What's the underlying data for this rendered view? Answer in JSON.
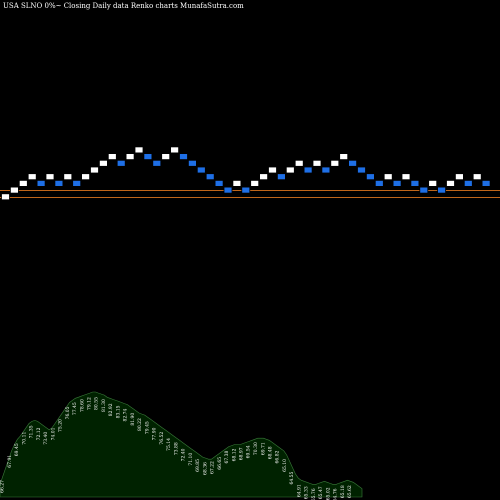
{
  "title": "USA SLNO  0%~  Closing Daily data  Renko  charts MunafaSutra.com",
  "colors": {
    "background": "#000000",
    "up_brick": "#ffffff",
    "down_brick": "#1e6fe6",
    "brick_border": "#000000",
    "price_line": "#c0661a",
    "volume_fill": "#002200",
    "volume_outline": "#3a7a3a",
    "label": "#ffffff"
  },
  "chart_data": {
    "type": "renko",
    "bricks": [
      {
        "col": 0,
        "level": 0,
        "dir": "up"
      },
      {
        "col": 1,
        "level": 1,
        "dir": "up"
      },
      {
        "col": 2,
        "level": 2,
        "dir": "up"
      },
      {
        "col": 3,
        "level": 3,
        "dir": "up"
      },
      {
        "col": 4,
        "level": 2,
        "dir": "down"
      },
      {
        "col": 5,
        "level": 3,
        "dir": "up"
      },
      {
        "col": 6,
        "level": 2,
        "dir": "down"
      },
      {
        "col": 7,
        "level": 3,
        "dir": "up"
      },
      {
        "col": 8,
        "level": 2,
        "dir": "down"
      },
      {
        "col": 9,
        "level": 3,
        "dir": "up"
      },
      {
        "col": 10,
        "level": 4,
        "dir": "up"
      },
      {
        "col": 11,
        "level": 5,
        "dir": "up"
      },
      {
        "col": 12,
        "level": 6,
        "dir": "up"
      },
      {
        "col": 13,
        "level": 5,
        "dir": "down"
      },
      {
        "col": 14,
        "level": 6,
        "dir": "up"
      },
      {
        "col": 15,
        "level": 7,
        "dir": "up"
      },
      {
        "col": 16,
        "level": 6,
        "dir": "down"
      },
      {
        "col": 17,
        "level": 5,
        "dir": "down"
      },
      {
        "col": 18,
        "level": 6,
        "dir": "up"
      },
      {
        "col": 19,
        "level": 7,
        "dir": "up"
      },
      {
        "col": 20,
        "level": 6,
        "dir": "down"
      },
      {
        "col": 21,
        "level": 5,
        "dir": "down"
      },
      {
        "col": 22,
        "level": 4,
        "dir": "down"
      },
      {
        "col": 23,
        "level": 3,
        "dir": "down"
      },
      {
        "col": 24,
        "level": 2,
        "dir": "down"
      },
      {
        "col": 25,
        "level": 1,
        "dir": "down"
      },
      {
        "col": 26,
        "level": 2,
        "dir": "up"
      },
      {
        "col": 27,
        "level": 1,
        "dir": "down"
      },
      {
        "col": 28,
        "level": 2,
        "dir": "up"
      },
      {
        "col": 29,
        "level": 3,
        "dir": "up"
      },
      {
        "col": 30,
        "level": 4,
        "dir": "up"
      },
      {
        "col": 31,
        "level": 3,
        "dir": "down"
      },
      {
        "col": 32,
        "level": 4,
        "dir": "up"
      },
      {
        "col": 33,
        "level": 5,
        "dir": "up"
      },
      {
        "col": 34,
        "level": 4,
        "dir": "down"
      },
      {
        "col": 35,
        "level": 5,
        "dir": "up"
      },
      {
        "col": 36,
        "level": 4,
        "dir": "down"
      },
      {
        "col": 37,
        "level": 5,
        "dir": "up"
      },
      {
        "col": 38,
        "level": 6,
        "dir": "up"
      },
      {
        "col": 39,
        "level": 5,
        "dir": "down"
      },
      {
        "col": 40,
        "level": 4,
        "dir": "down"
      },
      {
        "col": 41,
        "level": 3,
        "dir": "down"
      },
      {
        "col": 42,
        "level": 2,
        "dir": "down"
      },
      {
        "col": 43,
        "level": 3,
        "dir": "up"
      },
      {
        "col": 44,
        "level": 2,
        "dir": "down"
      },
      {
        "col": 45,
        "level": 3,
        "dir": "up"
      },
      {
        "col": 46,
        "level": 2,
        "dir": "down"
      },
      {
        "col": 47,
        "level": 1,
        "dir": "down"
      },
      {
        "col": 48,
        "level": 2,
        "dir": "up"
      },
      {
        "col": 49,
        "level": 1,
        "dir": "down"
      },
      {
        "col": 50,
        "level": 2,
        "dir": "up"
      },
      {
        "col": 51,
        "level": 3,
        "dir": "up"
      },
      {
        "col": 52,
        "level": 2,
        "dir": "down"
      },
      {
        "col": 53,
        "level": 3,
        "dir": "up"
      },
      {
        "col": 54,
        "level": 2,
        "dir": "down"
      }
    ],
    "price_lines": [
      "upper",
      "lower"
    ],
    "volume_profile": [
      12,
      20,
      28,
      36,
      44,
      50,
      55,
      58,
      62,
      66,
      70,
      72,
      73,
      72,
      70,
      68,
      66,
      64,
      66,
      70,
      74,
      78,
      82,
      86,
      90,
      92,
      94,
      95,
      96,
      97,
      98,
      99,
      100,
      100,
      99,
      98,
      97,
      95,
      94,
      93,
      92,
      91,
      90,
      89,
      88,
      86,
      84,
      82,
      80,
      79,
      78,
      76,
      74,
      72,
      70,
      68,
      66,
      64,
      62,
      60,
      58,
      56,
      54,
      52,
      50,
      48,
      46,
      44,
      42,
      40,
      38,
      37,
      36,
      36,
      38,
      40,
      42,
      44,
      46,
      48,
      49,
      50,
      50,
      50,
      51,
      52,
      53,
      54,
      55,
      56,
      56,
      56,
      55,
      54,
      52,
      50,
      48,
      46,
      44,
      40,
      34,
      28,
      22,
      18,
      16,
      15,
      14,
      13,
      12,
      12,
      13,
      14,
      15,
      14,
      13,
      12,
      12,
      13,
      14,
      15,
      16,
      15,
      14,
      12,
      10,
      8
    ],
    "volume_labels": [
      {
        "text": "66.27",
        "at": 0.01
      },
      {
        "text": "67.91",
        "at": 0.03
      },
      {
        "text": "69.45",
        "at": 0.05
      },
      {
        "text": "70.11",
        "at": 0.07
      },
      {
        "text": "71.35",
        "at": 0.09
      },
      {
        "text": "72.12",
        "at": 0.11
      },
      {
        "text": "73.40",
        "at": 0.13
      },
      {
        "text": "74.01",
        "at": 0.15
      },
      {
        "text": "75.20",
        "at": 0.17
      },
      {
        "text": "76.05",
        "at": 0.19
      },
      {
        "text": "77.45",
        "at": 0.21
      },
      {
        "text": "78.60",
        "at": 0.23
      },
      {
        "text": "79.12",
        "at": 0.25
      },
      {
        "text": "80.55",
        "at": 0.27
      },
      {
        "text": "81.30",
        "at": 0.29
      },
      {
        "text": "82.92",
        "at": 0.31
      },
      {
        "text": "83.15",
        "at": 0.33
      },
      {
        "text": "82.74",
        "at": 0.35
      },
      {
        "text": "81.90",
        "at": 0.37
      },
      {
        "text": "80.22",
        "at": 0.39
      },
      {
        "text": "79.45",
        "at": 0.41
      },
      {
        "text": "77.90",
        "at": 0.43
      },
      {
        "text": "76.52",
        "at": 0.45
      },
      {
        "text": "75.14",
        "at": 0.47
      },
      {
        "text": "73.88",
        "at": 0.49
      },
      {
        "text": "72.40",
        "at": 0.51
      },
      {
        "text": "71.10",
        "at": 0.53
      },
      {
        "text": "69.85",
        "at": 0.55
      },
      {
        "text": "68.36",
        "at": 0.57
      },
      {
        "text": "67.22",
        "at": 0.59
      },
      {
        "text": "66.65",
        "at": 0.61
      },
      {
        "text": "67.38",
        "at": 0.63
      },
      {
        "text": "68.12",
        "at": 0.65
      },
      {
        "text": "68.97",
        "at": 0.67
      },
      {
        "text": "69.54",
        "at": 0.69
      },
      {
        "text": "70.30",
        "at": 0.71
      },
      {
        "text": "69.71",
        "at": 0.73
      },
      {
        "text": "68.48",
        "at": 0.75
      },
      {
        "text": "66.82",
        "at": 0.77
      },
      {
        "text": "65.10",
        "at": 0.79
      },
      {
        "text": "64.55",
        "at": 0.81
      },
      {
        "text": "64.91",
        "at": 0.83
      },
      {
        "text": "65.33",
        "at": 0.85
      },
      {
        "text": "65.76",
        "at": 0.87
      },
      {
        "text": "65.47",
        "at": 0.89
      },
      {
        "text": "65.02",
        "at": 0.91
      },
      {
        "text": "64.76",
        "at": 0.93
      },
      {
        "text": "65.18",
        "at": 0.95
      },
      {
        "text": "65.62",
        "at": 0.97
      }
    ]
  }
}
